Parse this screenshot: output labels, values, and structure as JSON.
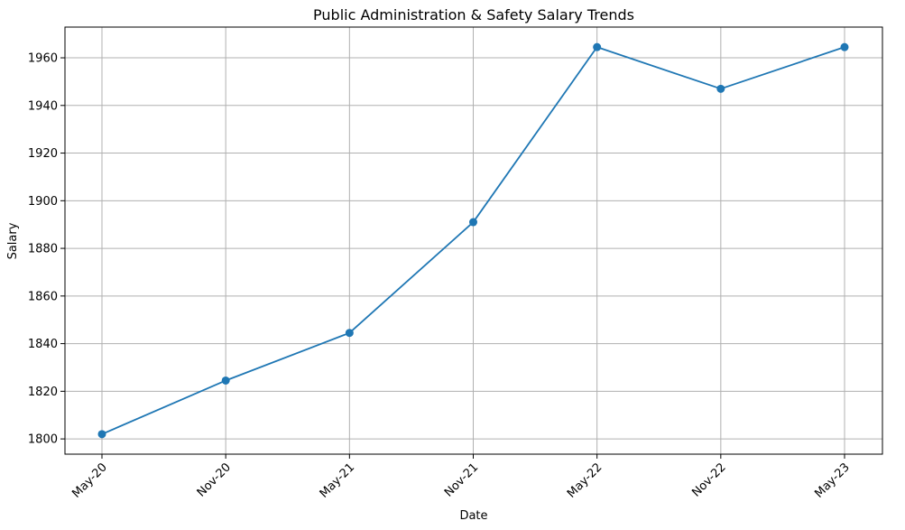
{
  "chart_data": {
    "type": "line",
    "title": "Public Administration & Safety Salary Trends",
    "xlabel": "Date",
    "ylabel": "Salary",
    "categories": [
      "May-20",
      "Nov-20",
      "May-21",
      "Nov-21",
      "May-22",
      "Nov-22",
      "May-23"
    ],
    "series": [
      {
        "values": [
          1802,
          1824.5,
          1844.5,
          1891,
          1964.5,
          1947,
          1964.5
        ]
      }
    ],
    "ylim": [
      1793.6,
      1972.9
    ],
    "yticks": [
      1800,
      1820,
      1840,
      1860,
      1880,
      1900,
      1920,
      1940,
      1960
    ],
    "grid": true,
    "markers": true,
    "legend": "none",
    "colors": {
      "line": "#1f77b4",
      "grid": "#b0b0b0",
      "axis": "#000000"
    }
  }
}
